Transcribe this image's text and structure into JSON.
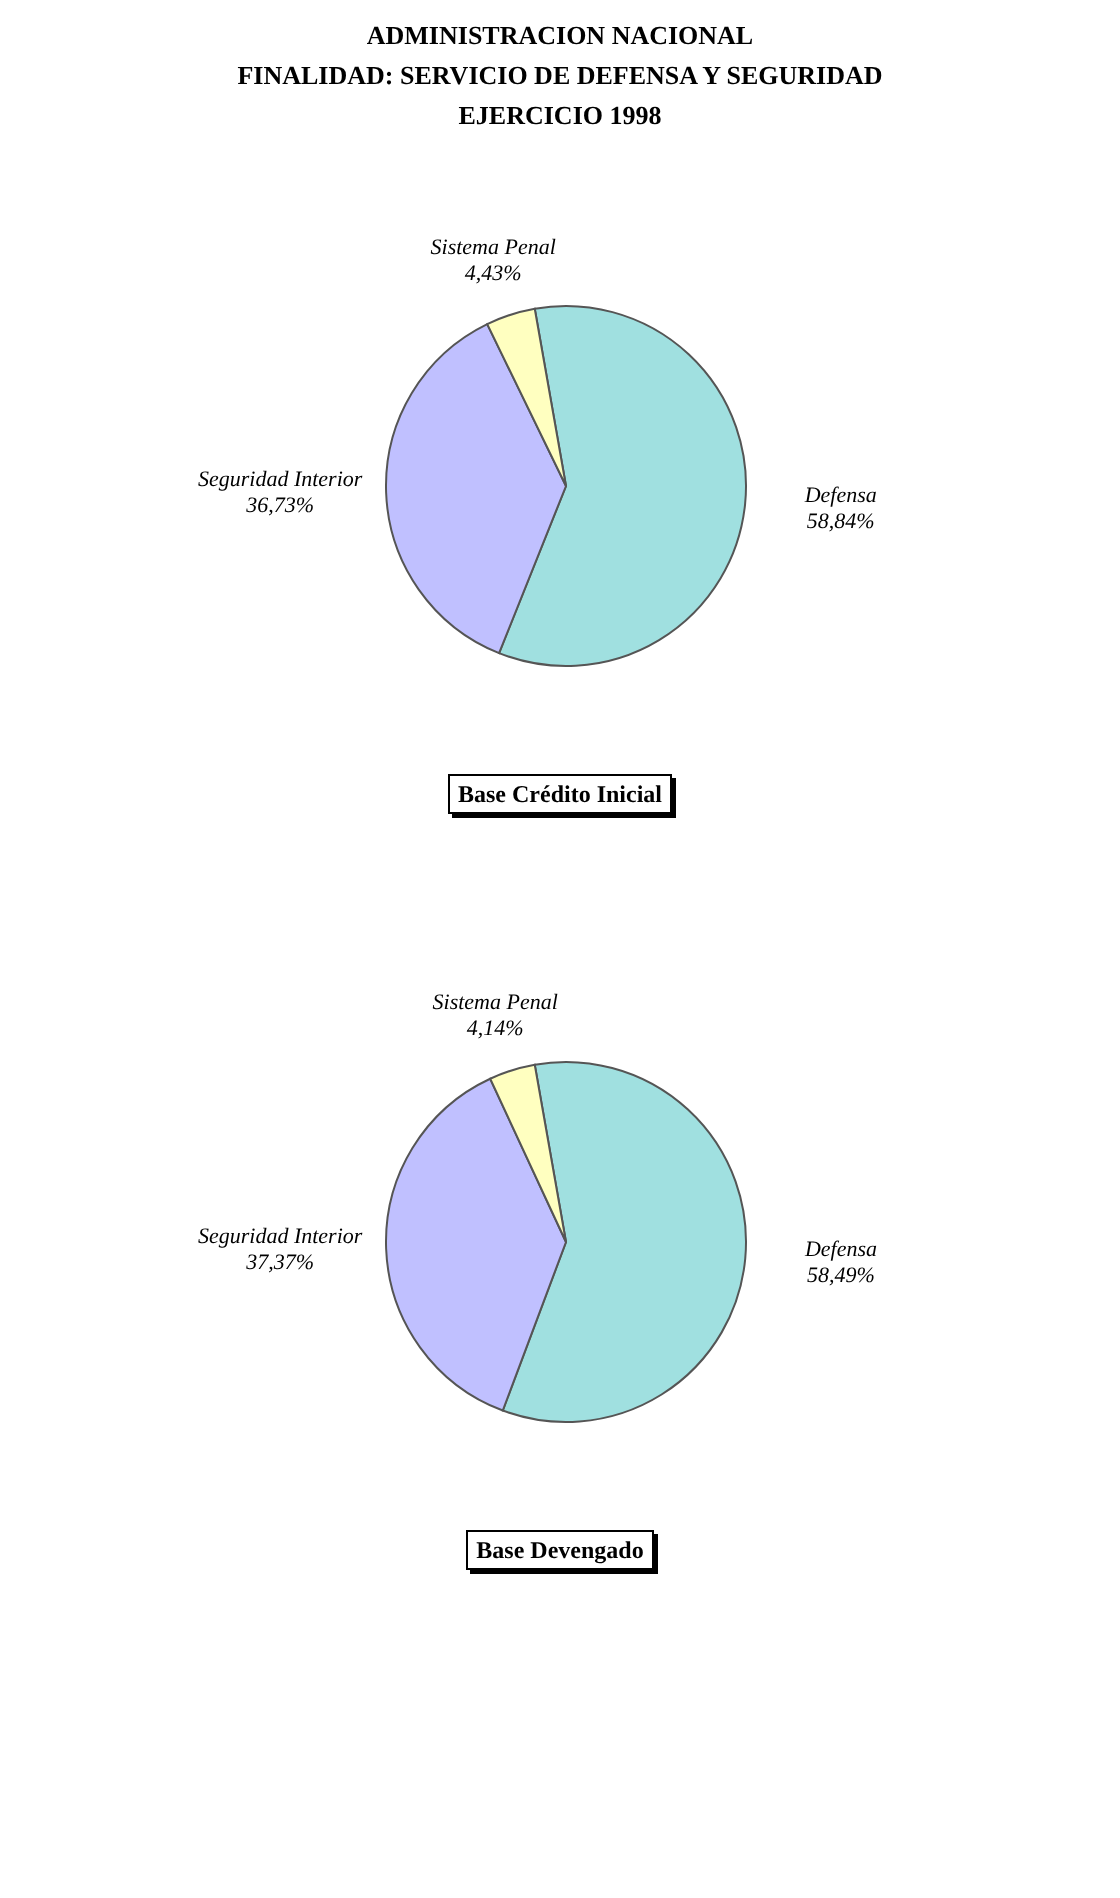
{
  "chart_data": [
    {
      "type": "pie",
      "title": "ADMINISTRACION NACIONAL\nFINALIDAD: SERVICIO DE DEFENSA Y SEGURIDAD\nEJERCICIO 1998",
      "categories": [
        "Defensa",
        "Seguridad Interior",
        "Sistema Penal"
      ],
      "values": [
        58.84,
        36.73,
        4.43
      ],
      "colors": [
        "#a0e0e0",
        "#c0c0ff",
        "#ffffc0"
      ],
      "value_labels": [
        "58,84%",
        "36,73%",
        "4,43%"
      ],
      "annotations": [
        "Base Crédito Inicial"
      ],
      "legend": false
    },
    {
      "type": "pie",
      "categories": [
        "Defensa",
        "Seguridad Interior",
        "Sistema Penal"
      ],
      "values": [
        58.49,
        37.37,
        4.14
      ],
      "colors": [
        "#a0e0e0",
        "#c0c0ff",
        "#ffffc0"
      ],
      "value_labels": [
        "58,49%",
        "37,37%",
        "4,14%"
      ],
      "annotations": [
        "Base Devengado"
      ],
      "legend": false
    }
  ]
}
